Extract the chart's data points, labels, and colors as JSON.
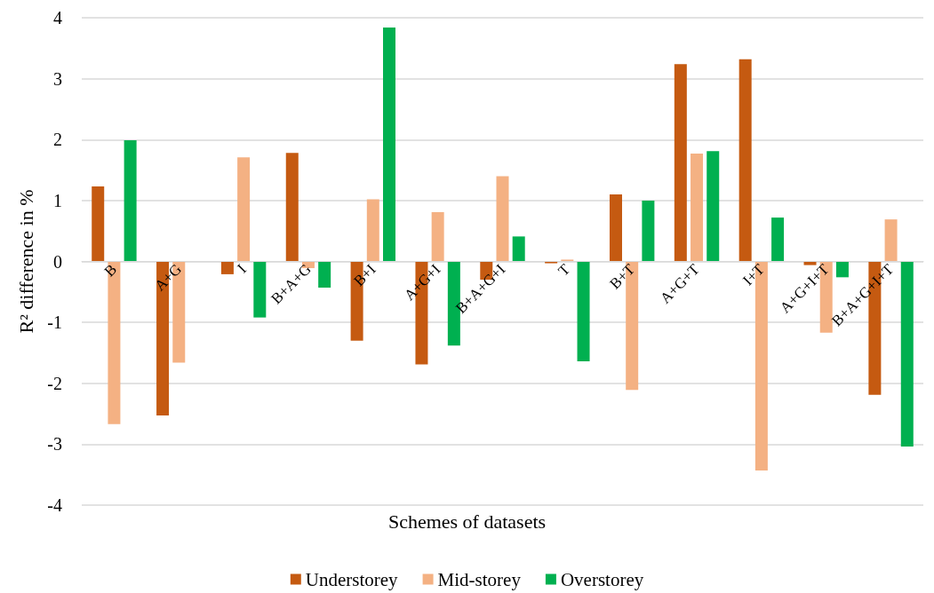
{
  "chart_data": {
    "type": "bar",
    "xlabel": "Schemes of datasets",
    "ylabel": "R² difference in %",
    "categories": [
      "B",
      "A+G",
      "I",
      "B+A+G",
      "B+I",
      "A+G+I",
      "B+A+G+I",
      "T",
      "B+T",
      "A+G+T",
      "I+T",
      "A+G+I+T",
      "B+A+G+I+T"
    ],
    "series": [
      {
        "name": "Understorey",
        "color": "#c55a11",
        "values": [
          1.23,
          -2.53,
          -0.21,
          1.78,
          -1.3,
          -1.69,
          -0.3,
          -0.03,
          1.1,
          3.24,
          3.32,
          -0.06,
          -2.19
        ]
      },
      {
        "name": "Mid-storey",
        "color": "#f4b183",
        "values": [
          -2.67,
          -1.66,
          1.71,
          -0.11,
          1.02,
          0.81,
          1.4,
          0.03,
          -2.11,
          1.77,
          -3.43,
          -1.17,
          0.69
        ]
      },
      {
        "name": "Overstorey",
        "color": "#00b050",
        "values": [
          1.99,
          null,
          -0.92,
          -0.43,
          3.84,
          -1.38,
          0.41,
          -1.64,
          1.0,
          1.81,
          0.72,
          -0.26,
          -3.04
        ]
      }
    ],
    "ylim": [
      -4,
      4
    ],
    "yticks": [
      -4,
      -3,
      -2,
      -1,
      0,
      1,
      2,
      3,
      4
    ],
    "grid": "y",
    "legend": "bottom"
  }
}
